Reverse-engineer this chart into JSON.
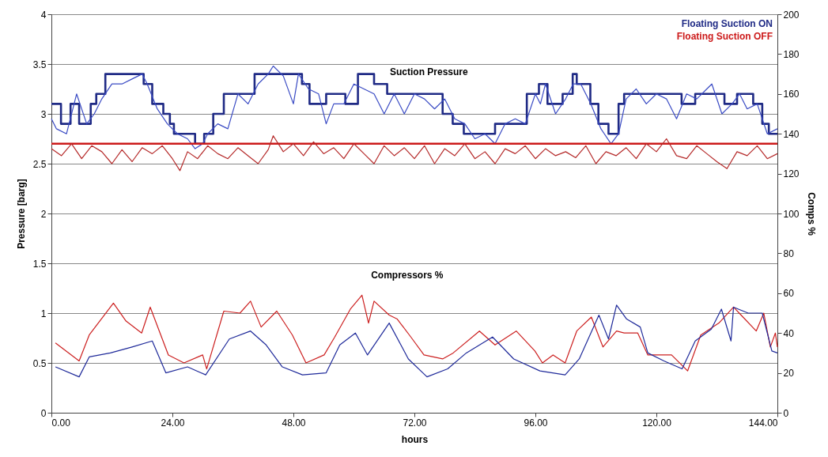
{
  "chart_data": {
    "type": "line",
    "xlabel": "hours",
    "ylabel": "Pressure [barg]",
    "y2label": "Comps %",
    "annotations": [
      "Suction Pressure",
      "Compressors %"
    ],
    "xlim": [
      0,
      144
    ],
    "xticks": [
      {
        "value": 0,
        "label": "0.00"
      },
      {
        "value": 24,
        "label": "24.00"
      },
      {
        "value": 48,
        "label": "48.00"
      },
      {
        "value": 72,
        "label": "72.00"
      },
      {
        "value": 96,
        "label": "96.00"
      },
      {
        "value": 120,
        "label": "120.00"
      },
      {
        "value": 144,
        "label": "144.00"
      }
    ],
    "ylim": [
      0,
      4
    ],
    "yticks": [
      0,
      0.5,
      1,
      1.5,
      2,
      2.5,
      3,
      3.5,
      4
    ],
    "y2lim": [
      0,
      200
    ],
    "y2ticks": [
      0,
      20,
      40,
      60,
      80,
      100,
      120,
      140,
      160,
      180,
      200
    ],
    "grid": "y",
    "legend": "top right",
    "marker": "none",
    "line_style": "solid",
    "series": [
      {
        "name": "Floating Suction ON",
        "type": "step",
        "color": "#1f2a85",
        "x": [
          0,
          1.9,
          3.8,
          5.5,
          7.8,
          8.9,
          10.7,
          13.3,
          18.3,
          20,
          22.2,
          23.5,
          24.3,
          28.5,
          30.3,
          32.1,
          34.2,
          40.3,
          46.7,
          49.7,
          51.2,
          54.5,
          58.3,
          60.8,
          64,
          66.6,
          77.6,
          79.6,
          81.8,
          88,
          94.3,
          96.7,
          98.4,
          101.4,
          103.4,
          104.2,
          106.9,
          108.5,
          110.5,
          112.5,
          113.6,
          125,
          127.7,
          133.5,
          136,
          139.2,
          141,
          142.3,
          144
        ],
        "values": [
          3.1,
          2.9,
          3.1,
          2.9,
          3.1,
          3.2,
          3.4,
          3.4,
          3.3,
          3.1,
          3.0,
          2.9,
          2.8,
          2.7,
          2.8,
          3.0,
          3.2,
          3.4,
          3.4,
          3.3,
          3.1,
          3.2,
          3.1,
          3.4,
          3.3,
          3.2,
          3.0,
          2.9,
          2.8,
          2.9,
          3.2,
          3.3,
          3.1,
          3.2,
          3.4,
          3.3,
          3.1,
          2.9,
          2.8,
          3.1,
          3.2,
          3.1,
          3.2,
          3.1,
          3.2,
          3.1,
          2.9,
          2.8,
          2.8
        ]
      },
      {
        "color": "#3a4bc4",
        "x": [
          0,
          1,
          3,
          5,
          7,
          8.5,
          10,
          12,
          14,
          16,
          18,
          19,
          21,
          23,
          25,
          27,
          28.5,
          30,
          31,
          33,
          35,
          37,
          39,
          41,
          43,
          44,
          46,
          48,
          49,
          51,
          53,
          54.5,
          56,
          58,
          60,
          62,
          64,
          66,
          68,
          70,
          72,
          74,
          76,
          78,
          80,
          82,
          84,
          86,
          88,
          90,
          92,
          94,
          96,
          97,
          98,
          100,
          102,
          103.5,
          105,
          107,
          109,
          111,
          112.5,
          114,
          116,
          118,
          120,
          122,
          124,
          126,
          128,
          130,
          131,
          133,
          135,
          136.5,
          138,
          140,
          142,
          144
        ],
        "values": [
          2.95,
          2.85,
          2.8,
          3.2,
          2.9,
          3.0,
          3.15,
          3.3,
          3.3,
          3.35,
          3.4,
          3.3,
          3.05,
          2.9,
          2.8,
          2.75,
          2.65,
          2.7,
          2.8,
          2.9,
          2.85,
          3.2,
          3.1,
          3.3,
          3.4,
          3.48,
          3.38,
          3.1,
          3.4,
          3.25,
          3.2,
          2.9,
          3.1,
          3.1,
          3.3,
          3.25,
          3.2,
          3.0,
          3.2,
          3.0,
          3.2,
          3.15,
          3.05,
          3.15,
          2.95,
          2.9,
          2.75,
          2.8,
          2.7,
          2.9,
          2.95,
          2.9,
          3.2,
          3.1,
          3.3,
          3.0,
          3.15,
          3.3,
          3.3,
          3.1,
          2.85,
          2.7,
          2.8,
          3.15,
          3.25,
          3.1,
          3.2,
          3.15,
          2.95,
          3.2,
          3.15,
          3.25,
          3.3,
          3.0,
          3.1,
          3.2,
          3.05,
          3.1,
          2.8,
          2.85
        ]
      },
      {
        "name": "Floating Suction OFF",
        "color": "#cc1a1a",
        "x": [
          0,
          144
        ],
        "values": [
          2.7,
          2.7
        ]
      },
      {
        "color": "#b52a2a",
        "x": [
          0,
          2,
          4,
          6,
          8,
          10,
          12,
          14,
          16,
          18,
          20,
          22,
          24,
          25.5,
          27,
          29,
          31,
          33,
          35,
          37,
          39,
          41,
          43,
          44,
          46,
          48,
          50,
          52,
          54,
          56,
          58,
          60,
          62,
          64,
          66,
          68,
          70,
          72,
          74,
          76,
          78,
          80,
          82,
          84,
          86,
          88,
          90,
          92,
          94,
          96,
          98,
          100,
          102,
          104,
          106,
          108,
          110,
          112,
          114,
          116,
          118,
          120,
          122,
          124,
          126,
          128,
          130,
          132,
          134,
          136,
          138,
          140,
          142,
          144
        ],
        "values": [
          2.65,
          2.58,
          2.7,
          2.55,
          2.68,
          2.62,
          2.5,
          2.64,
          2.52,
          2.66,
          2.6,
          2.68,
          2.55,
          2.43,
          2.62,
          2.55,
          2.68,
          2.6,
          2.55,
          2.66,
          2.58,
          2.5,
          2.64,
          2.78,
          2.62,
          2.7,
          2.58,
          2.72,
          2.6,
          2.66,
          2.55,
          2.7,
          2.6,
          2.5,
          2.68,
          2.58,
          2.66,
          2.55,
          2.68,
          2.5,
          2.65,
          2.58,
          2.7,
          2.55,
          2.62,
          2.5,
          2.65,
          2.6,
          2.68,
          2.55,
          2.65,
          2.58,
          2.62,
          2.56,
          2.68,
          2.5,
          2.62,
          2.58,
          2.66,
          2.55,
          2.7,
          2.62,
          2.75,
          2.58,
          2.55,
          2.68,
          2.6,
          2.52,
          2.45,
          2.62,
          2.58,
          2.68,
          2.55,
          2.6
        ]
      },
      {
        "axis": "y2",
        "color": "#cc2020",
        "x": [
          0.8,
          5.5,
          7.5,
          12.3,
          14.8,
          17.9,
          19.6,
          23.2,
          26.3,
          30,
          30.8,
          34.2,
          37.4,
          39.5,
          41.6,
          44.7,
          47.8,
          50.5,
          54.1,
          56.2,
          59.3,
          61.6,
          62.9,
          64,
          67,
          68.6,
          71.3,
          73.9,
          77.6,
          79.7,
          84.9,
          88,
          92.2,
          95.9,
          97.4,
          99.5,
          101.9,
          104.2,
          107.1,
          109.4,
          112.1,
          113.6,
          116.3,
          118.3,
          123,
          126.2,
          128.8,
          132.4,
          135.3,
          136.8,
          139.8,
          141.3,
          142.6,
          143.6,
          144
        ],
        "values": [
          35,
          26,
          39,
          55,
          46,
          40,
          53,
          29,
          25,
          29,
          22,
          51,
          50,
          56,
          43,
          51,
          39,
          25,
          29,
          38,
          52,
          59,
          45,
          56,
          49,
          47,
          38,
          29,
          27,
          30,
          41,
          34,
          41,
          31,
          25,
          29,
          25,
          41,
          48,
          33,
          41,
          40,
          40,
          29,
          29,
          21,
          39,
          45,
          53,
          49,
          41,
          50,
          33,
          40,
          33
        ]
      },
      {
        "axis": "y2",
        "color": "#1f2a9a",
        "x": [
          0.8,
          5.5,
          7.5,
          11.7,
          16,
          20,
          22.7,
          27,
          30.6,
          35.3,
          39.5,
          42.6,
          45.8,
          49.8,
          54.5,
          57.2,
          60.3,
          62.7,
          67,
          70.8,
          74.5,
          78.6,
          82.3,
          87.5,
          91.7,
          96.9,
          101.9,
          104.7,
          108.6,
          110.5,
          112.1,
          114.1,
          116.8,
          118.3,
          121.5,
          125.1,
          127.7,
          130.9,
          132.9,
          134.8,
          135.3,
          138.2,
          141,
          142.9,
          144
        ],
        "values": [
          23,
          18,
          28,
          30,
          33,
          36,
          20,
          23,
          19,
          37,
          41,
          34,
          23,
          19,
          20,
          34,
          40,
          29,
          45,
          27,
          18,
          22,
          30,
          38,
          27,
          21,
          19,
          27,
          49,
          37,
          54,
          47,
          43,
          30,
          26,
          22,
          36,
          42,
          52,
          36,
          53,
          50,
          50,
          31,
          30
        ]
      }
    ]
  }
}
